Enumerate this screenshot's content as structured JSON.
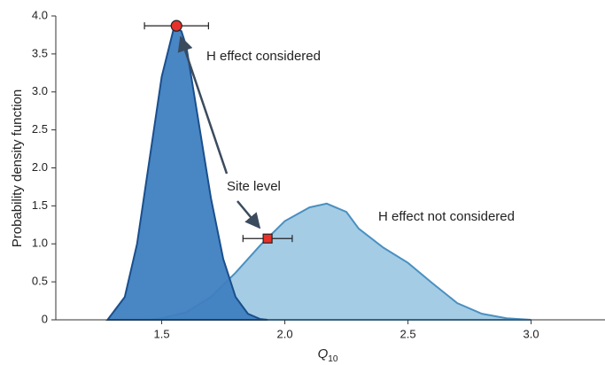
{
  "chart_data": {
    "type": "area",
    "y_label": "Probability density function",
    "x_label": {
      "symbol": "Q",
      "subscript": "10"
    },
    "xlim": [
      1.07,
      3.3
    ],
    "ylim": [
      0,
      4.0
    ],
    "xticks": [
      1.5,
      {
        "value": 2,
        "label": "2.0"
      },
      2.5,
      {
        "value": 3,
        "label": "3.0"
      }
    ],
    "yticks": [
      0,
      0.5,
      {
        "value": 1,
        "label": "1.0"
      },
      1.5,
      {
        "value": 2,
        "label": "2.0"
      },
      2.5,
      {
        "value": 3,
        "label": "3.0"
      },
      3.5,
      {
        "value": 4,
        "label": "4.0"
      }
    ],
    "series": [
      {
        "name": "H effect considered",
        "color": "#3f7fc1",
        "stroke": "#1a4f8c",
        "x": [
          1.28,
          1.35,
          1.4,
          1.45,
          1.5,
          1.55,
          1.58,
          1.6,
          1.65,
          1.7,
          1.75,
          1.8,
          1.85,
          1.9,
          1.93
        ],
        "values": [
          0,
          0.3,
          1.0,
          2.1,
          3.2,
          3.85,
          3.8,
          3.6,
          2.6,
          1.6,
          0.8,
          0.3,
          0.08,
          0.01,
          0
        ]
      },
      {
        "name": "H effect not considered",
        "color": "#94c3e0",
        "stroke": "#4a90c0",
        "x": [
          1.45,
          1.5,
          1.6,
          1.7,
          1.8,
          1.9,
          2.0,
          2.1,
          2.17,
          2.25,
          2.3,
          2.4,
          2.5,
          2.6,
          2.7,
          2.8,
          2.9,
          3.0
        ],
        "values": [
          0,
          0.02,
          0.1,
          0.3,
          0.62,
          0.98,
          1.3,
          1.48,
          1.53,
          1.42,
          1.2,
          0.95,
          0.75,
          0.48,
          0.22,
          0.08,
          0.02,
          0
        ]
      }
    ],
    "points": [
      {
        "x": 1.56,
        "y": 3.87,
        "xerr": 0.13,
        "marker": "circle",
        "color": "#e8312a"
      },
      {
        "x": 1.93,
        "y": 1.07,
        "xerr": 0.1,
        "marker": "square",
        "color": "#e8312a"
      }
    ],
    "annotation": "Site level"
  }
}
